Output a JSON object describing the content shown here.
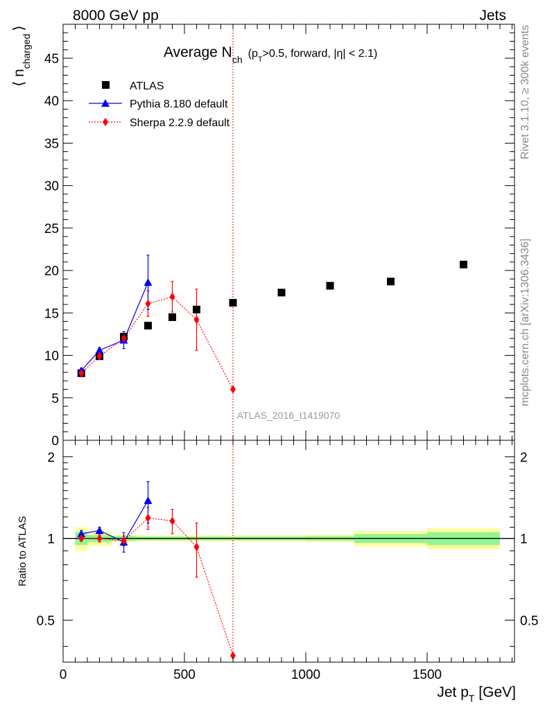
{
  "header": {
    "left": "8000 GeV pp",
    "right": "Jets"
  },
  "side_text": {
    "rivet": "Rivet 3.1.10, ≥ 300k events",
    "mcplots": "mcplots.cern.ch [arXiv:1306.3436]"
  },
  "watermark": "ATLAS_2016_I1419070",
  "title": {
    "main": "Average N",
    "main_sub": "ch",
    "cond_a": "(p",
    "cond_sub": "T",
    "cond_b": ">0.5, forward, |η| < 2.1)"
  },
  "y_axis_top": {
    "label_open": "⟨ n",
    "label_sub": "charged",
    "label_close": "⟩",
    "ticks": [
      "0",
      "5",
      "10",
      "15",
      "20",
      "25",
      "30",
      "35",
      "40",
      "45"
    ]
  },
  "y_axis_ratio": {
    "label": "Ratio to ATLAS",
    "ticks": [
      "0.5",
      "1",
      "2"
    ]
  },
  "x_axis": {
    "label": "Jet p",
    "label_sub": "T",
    "label_unit": " [GeV]",
    "ticks": [
      "0",
      "500",
      "1000",
      "1500"
    ]
  },
  "legend": {
    "atlas": "ATLAS",
    "pythia": "Pythia 8.180 default",
    "sherpa": "Sherpa 2.2.9 default"
  },
  "colors": {
    "atlas": "#000000",
    "pythia": "#0000ee",
    "sherpa": "#ff0000",
    "band_green": "#93f593",
    "band_yellow": "#fdfd9d",
    "cut_line": "#ff0000"
  },
  "chart_data": {
    "type": "scatter",
    "xlim": [
      0,
      1860
    ],
    "ylim": [
      0,
      49
    ],
    "ratio_ylim": [
      0.35,
      2.3
    ],
    "ratio_scale": "log",
    "vertical_line_x": 700,
    "series": [
      {
        "name": "ATLAS",
        "marker": "square",
        "x": [
          75,
          150,
          250,
          350,
          450,
          550,
          700,
          900,
          1100,
          1350,
          1650
        ],
        "y": [
          7.9,
          9.9,
          12.2,
          13.5,
          14.5,
          15.4,
          16.2,
          17.4,
          18.2,
          18.7,
          20.7
        ],
        "bin_edges": [
          50,
          100,
          200,
          300,
          400,
          500,
          600,
          800,
          1000,
          1200,
          1500,
          1800
        ],
        "ratio_band_green": [
          0.055,
          0.03,
          0.02,
          0.015,
          0.015,
          0.015,
          0.015,
          0.015,
          0.018,
          0.038,
          0.055
        ],
        "ratio_band_yellow": [
          0.1,
          0.06,
          0.03,
          0.025,
          0.025,
          0.025,
          0.025,
          0.025,
          0.03,
          0.065,
          0.09
        ]
      },
      {
        "name": "Pythia 8.180 default",
        "marker": "triangle",
        "x": [
          75,
          150,
          250,
          350
        ],
        "y": [
          8.2,
          10.6,
          11.8,
          18.6
        ],
        "yerr": [
          0.3,
          0.3,
          1.0,
          3.2
        ],
        "ratio": [
          1.04,
          1.07,
          0.97,
          1.38
        ],
        "ratio_err": [
          0.03,
          0.03,
          0.08,
          0.24
        ]
      },
      {
        "name": "Sherpa 2.2.9 default",
        "marker": "diamond",
        "x": [
          75,
          150,
          250,
          350,
          450,
          550,
          700
        ],
        "y": [
          7.9,
          9.9,
          12.0,
          16.1,
          16.9,
          14.2,
          6.0
        ],
        "yerr": [
          0.2,
          0.3,
          0.5,
          1.5,
          1.8,
          3.6,
          0.0
        ],
        "ratio": [
          1.0,
          1.0,
          0.98,
          1.19,
          1.16,
          0.93,
          0.37
        ],
        "ratio_err": [
          0.02,
          0.03,
          0.04,
          0.11,
          0.12,
          0.21,
          0.0
        ]
      }
    ]
  }
}
